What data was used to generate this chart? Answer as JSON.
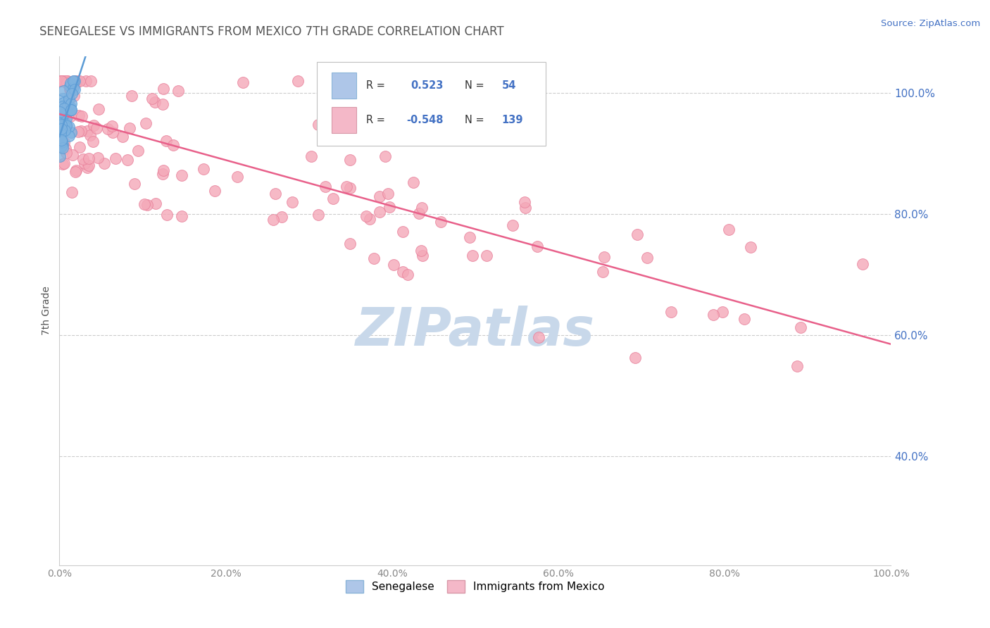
{
  "title": "SENEGALESE VS IMMIGRANTS FROM MEXICO 7TH GRADE CORRELATION CHART",
  "source_text": "Source: ZipAtlas.com",
  "ylabel": "7th Grade",
  "xlim": [
    0,
    1
  ],
  "ylim": [
    0.22,
    1.06
  ],
  "x_ticks": [
    0.0,
    0.2,
    0.4,
    0.6,
    0.8,
    1.0
  ],
  "x_tick_labels": [
    "0.0%",
    "20.0%",
    "40.0%",
    "60.0%",
    "80.0%",
    "100.0%"
  ],
  "y_ticks": [
    0.4,
    0.6,
    0.8,
    1.0
  ],
  "y_tick_labels": [
    "40.0%",
    "60.0%",
    "80.0%",
    "100.0%"
  ],
  "R_blue": 0.523,
  "N_blue": 54,
  "R_pink": -0.548,
  "N_pink": 139,
  "blue_dot_color": "#7fb3e0",
  "blue_dot_edge": "#5b9bd5",
  "pink_dot_color": "#f4a8b8",
  "pink_dot_edge": "#e8809a",
  "regression_pink_color": "#e8608a",
  "regression_blue_color": "#5b9bd5",
  "watermark_text": "ZIPatlas",
  "watermark_color": "#c8d8ea",
  "title_color": "#555555",
  "axis_label_color": "#555555",
  "tick_color": "#888888",
  "grid_color": "#cccccc",
  "source_color": "#4472c4",
  "yaxis_tick_color": "#4472c4",
  "legend_box_color": "#aec6e8",
  "legend_box_pink": "#f4b8c8",
  "legend_text_color": "#333333",
  "legend_value_color": "#4472c4",
  "pink_line_start_y": 0.965,
  "pink_line_end_y": 0.585
}
